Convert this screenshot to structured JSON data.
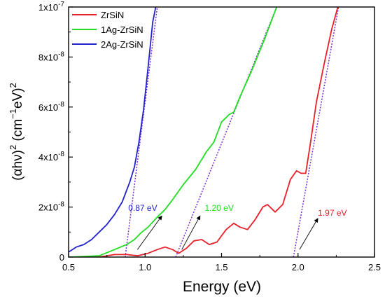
{
  "chart_data": {
    "type": "line",
    "title": "",
    "xlabel": "Energy (eV)",
    "ylabel": "(αhν)² (cm⁻¹eV)²",
    "ylabel_parts": {
      "open": "(",
      "alpha": "α",
      "hnu": "hν",
      "close": ")",
      "sq": "2",
      "unit": " (cm",
      "exp": "−1",
      "ev": "eV)",
      "sq2": "2"
    },
    "xlim": [
      0.5,
      2.5
    ],
    "ylim": [
      0,
      1e-07
    ],
    "x_ticks": [
      0.5,
      1.0,
      1.5,
      2.0,
      2.5
    ],
    "x_tick_labels": [
      "0.5",
      "1.0",
      "1.5",
      "2.0",
      "2.5"
    ],
    "y_ticks": [
      0,
      2e-08,
      4e-08,
      6e-08,
      8e-08,
      1e-07
    ],
    "y_tick_labels": [
      {
        "mant": "0",
        "exp": ""
      },
      {
        "mant": "2x10",
        "exp": "-8"
      },
      {
        "mant": "4x10",
        "exp": "-8"
      },
      {
        "mant": "6x10",
        "exp": "-8"
      },
      {
        "mant": "8x10",
        "exp": "-8"
      },
      {
        "mant": "1x10",
        "exp": "-7"
      }
    ],
    "grid": false,
    "legend_position": "top-left",
    "series": [
      {
        "name": "ZrSiN",
        "color": "#e8202a",
        "points": [
          [
            0.5,
            0
          ],
          [
            0.7,
            0
          ],
          [
            0.8,
            1e-09
          ],
          [
            0.88,
            1e-09
          ],
          [
            0.95,
            5e-10
          ],
          [
            1.02,
            1.5e-09
          ],
          [
            1.08,
            3e-09
          ],
          [
            1.13,
            4e-09
          ],
          [
            1.18,
            3e-09
          ],
          [
            1.22,
            1.5e-09
          ],
          [
            1.27,
            3.5e-09
          ],
          [
            1.32,
            6.5e-09
          ],
          [
            1.37,
            7e-09
          ],
          [
            1.42,
            5e-09
          ],
          [
            1.47,
            6e-09
          ],
          [
            1.53,
            1.1e-08
          ],
          [
            1.58,
            1.35e-08
          ],
          [
            1.62,
            1.2e-08
          ],
          [
            1.67,
            1.1e-08
          ],
          [
            1.72,
            1.5e-08
          ],
          [
            1.77,
            2e-08
          ],
          [
            1.8,
            2.1e-08
          ],
          [
            1.85,
            1.8e-08
          ],
          [
            1.9,
            2.1e-08
          ],
          [
            1.95,
            3.1e-08
          ],
          [
            1.99,
            3.45e-08
          ],
          [
            2.02,
            3.35e-08
          ],
          [
            2.05,
            3.35e-08
          ],
          [
            2.08,
            4.5e-08
          ],
          [
            2.12,
            6.2e-08
          ],
          [
            2.17,
            7.7e-08
          ],
          [
            2.22,
            9.1e-08
          ],
          [
            2.26,
            1e-07
          ]
        ]
      },
      {
        "name": "1Ag-ZrSiN",
        "color": "#22dd22",
        "points": [
          [
            0.5,
            0
          ],
          [
            0.7,
            5e-10
          ],
          [
            0.8,
            3e-09
          ],
          [
            0.88,
            5e-09
          ],
          [
            0.93,
            7e-09
          ],
          [
            0.97,
            9.5e-09
          ],
          [
            1.02,
            1.2e-08
          ],
          [
            1.08,
            1.6e-08
          ],
          [
            1.13,
            1.9e-08
          ],
          [
            1.18,
            2.3e-08
          ],
          [
            1.25,
            2.9e-08
          ],
          [
            1.33,
            3.5e-08
          ],
          [
            1.4,
            4.2e-08
          ],
          [
            1.45,
            4.6e-08
          ],
          [
            1.5,
            5.4e-08
          ],
          [
            1.55,
            5.7e-08
          ],
          [
            1.58,
            5.8e-08
          ],
          [
            1.62,
            6.4e-08
          ],
          [
            1.7,
            7.5e-08
          ],
          [
            1.78,
            8.7e-08
          ],
          [
            1.86,
            1e-07
          ]
        ]
      },
      {
        "name": "2Ag-ZrSiN",
        "color": "#2222cc",
        "points": [
          [
            0.5,
            2e-09
          ],
          [
            0.55,
            4e-09
          ],
          [
            0.6,
            5e-09
          ],
          [
            0.65,
            7e-09
          ],
          [
            0.7,
            1e-08
          ],
          [
            0.75,
            1.3e-08
          ],
          [
            0.8,
            1.7e-08
          ],
          [
            0.85,
            2.2e-08
          ],
          [
            0.9,
            3e-08
          ],
          [
            0.93,
            3.6e-08
          ],
          [
            0.96,
            4.6e-08
          ],
          [
            0.99,
            5.9e-08
          ],
          [
            1.02,
            7.6e-08
          ],
          [
            1.05,
            9.4e-08
          ],
          [
            1.07,
            1e-07
          ]
        ]
      }
    ],
    "tangent_lines": [
      {
        "color": "#7b2bd6",
        "from": [
          0.87,
          0
        ],
        "to": [
          1.08,
          1e-07
        ]
      },
      {
        "color": "#7b2bd6",
        "from": [
          1.2,
          0
        ],
        "to": [
          1.86,
          1e-07
        ]
      },
      {
        "color": "#7b2bd6",
        "from": [
          1.97,
          0
        ],
        "to": [
          2.265,
          1e-07
        ]
      }
    ],
    "annotations": [
      {
        "text": "0.87 eV",
        "color": "#2222cc",
        "label_at": [
          0.89,
          1.85e-08
        ],
        "arrow_from": [
          0.95,
          3e-09
        ],
        "arrow_to": [
          1.11,
          1.65e-08
        ]
      },
      {
        "text": "1.20 eV",
        "color": "#22dd22",
        "label_at": [
          1.39,
          1.85e-08
        ],
        "arrow_from": [
          1.24,
          3e-09
        ],
        "arrow_to": [
          1.36,
          1.65e-08
        ]
      },
      {
        "text": "1.97 eV",
        "color": "#e8202a",
        "label_at": [
          2.13,
          1.65e-08
        ],
        "arrow_from": [
          2.01,
          3e-09
        ],
        "arrow_to": [
          2.13,
          1.55e-08
        ]
      }
    ]
  }
}
